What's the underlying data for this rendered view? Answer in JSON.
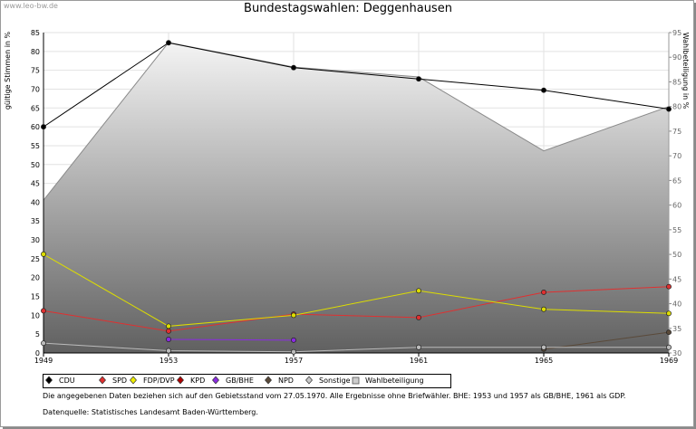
{
  "watermark": "www.leo-bw.de",
  "chart_data": {
    "type": "line",
    "title": "Bundestagswahlen: Deggenhausen",
    "ylabel": "gültige Stimmen in %",
    "y2label": "Wahlbeteiligung in %",
    "x": [
      "1949",
      "1953",
      "1957",
      "1961",
      "1965",
      "1969"
    ],
    "ylim": [
      0,
      85
    ],
    "yticks": [
      0,
      5,
      10,
      15,
      20,
      25,
      30,
      35,
      40,
      45,
      50,
      55,
      60,
      65,
      70,
      75,
      80,
      85
    ],
    "y2lim": [
      30,
      95
    ],
    "y2ticks": [
      30,
      35,
      40,
      45,
      50,
      55,
      60,
      65,
      70,
      75,
      80,
      85,
      90,
      95
    ],
    "grid": true,
    "legend_position": "bottom",
    "turnout": {
      "name": "Wahlbeteiligung",
      "axis": "right",
      "values": [
        61,
        93,
        88,
        86,
        71,
        80
      ]
    },
    "series": [
      {
        "name": "CDU",
        "color": "#000000",
        "values": [
          60,
          82.3,
          75.7,
          72.7,
          69.7,
          64.7
        ]
      },
      {
        "name": "SPD",
        "color": "#e03030",
        "values": [
          11.2,
          5.8,
          10.3,
          9.4,
          16.1,
          17.6
        ]
      },
      {
        "name": "FDP/DVP",
        "color": "#dddd00",
        "values": [
          26.2,
          7.1,
          10.0,
          16.5,
          11.6,
          10.5
        ]
      },
      {
        "name": "KPD",
        "color": "#b00000",
        "values": [
          null,
          null,
          null,
          null,
          null,
          null
        ]
      },
      {
        "name": "GB/BHE",
        "color": "#8a2be2",
        "values": [
          null,
          3.6,
          3.4,
          null,
          null,
          null
        ]
      },
      {
        "name": "NPD",
        "color": "#5a4a3a",
        "values": [
          null,
          null,
          null,
          null,
          1.0,
          5.5
        ]
      },
      {
        "name": "Sonstige",
        "color": "#bbbbbb",
        "values": [
          2.6,
          0.6,
          0.3,
          1.5,
          1.5,
          1.5
        ]
      }
    ]
  },
  "legend": [
    {
      "label": "CDU",
      "fill": "#000000"
    },
    {
      "label": "SPD",
      "fill": "#e03030"
    },
    {
      "label": "FDP/DVP",
      "fill": "#eeee00"
    },
    {
      "label": "KPD",
      "fill": "#b00000"
    },
    {
      "label": "GB/BHE",
      "fill": "#8a2be2"
    },
    {
      "label": "NPD",
      "fill": "#5a4a3a"
    },
    {
      "label": "Sonstige",
      "fill": "#c8c8c8"
    },
    {
      "label": "Wahlbeteiligung",
      "fill": "#cccccc"
    }
  ],
  "notes": {
    "line1": "Die angegebenen Daten beziehen sich auf den Gebietsstand vom 27.05.1970. Alle Ergebnisse ohne Briefwähler. BHE: 1953 und 1957 als GB/BHE, 1961 als GDP.",
    "line2": "Datenquelle: Statistisches Landesamt Baden-Württemberg."
  }
}
